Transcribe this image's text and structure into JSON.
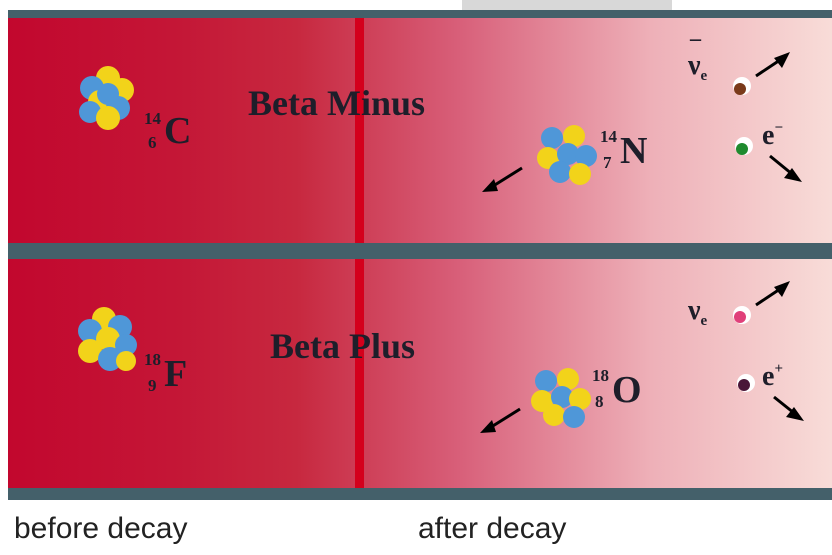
{
  "rows": [
    {
      "title": "Beta Minus",
      "parent": {
        "symbol": "C",
        "mass": "14",
        "number": "6"
      },
      "daughter": {
        "symbol": "N",
        "mass": "14",
        "number": "7"
      },
      "antineutrino": {
        "symbol": "ν",
        "sub": "e",
        "bar": "¯"
      },
      "electron": {
        "symbol": "e",
        "sup": "−"
      }
    },
    {
      "title": "Beta Plus",
      "parent": {
        "symbol": "F",
        "mass": "18",
        "number": "9"
      },
      "daughter": {
        "symbol": "O",
        "mass": "18",
        "number": "8"
      },
      "neutrino": {
        "symbol": "ν",
        "sub": "e"
      },
      "positron": {
        "symbol": "e",
        "sup": "+"
      }
    }
  ],
  "captions": {
    "before": "before decay",
    "after": "after decay"
  },
  "colors": {
    "panel_dark": "#c2072e",
    "panel_light": "#f8dcd8",
    "bar": "#44606a",
    "divider": "#d4001c",
    "proton": "#f2d31a",
    "neutron": "#4f97d8",
    "electron_dot": "#1f8a2e",
    "antineutrino_dot": "#7a3a1a",
    "neutrino_dot": "#e0407a",
    "positron_dot": "#4a1638"
  }
}
